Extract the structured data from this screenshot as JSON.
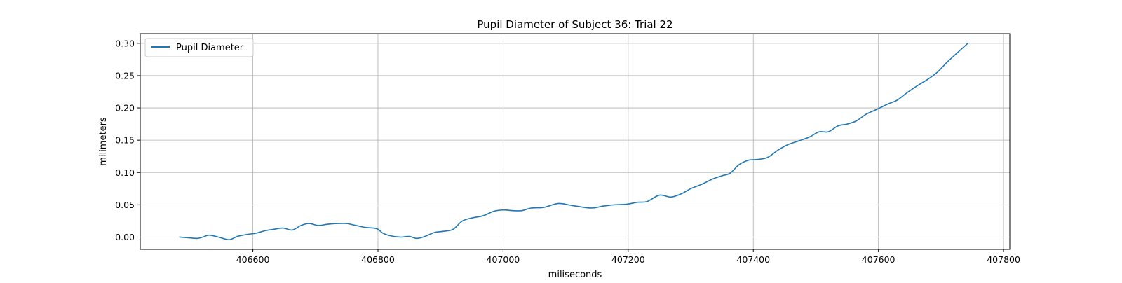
{
  "chart_data": {
    "type": "line",
    "title": "Pupil Diameter of Subject 36: Trial 22",
    "xlabel": "miliseconds",
    "ylabel": "milimeters",
    "xlim": [
      406420,
      407810
    ],
    "ylim": [
      -0.019,
      0.315
    ],
    "x_ticks": [
      406600,
      406800,
      407000,
      407200,
      407400,
      407600,
      407800
    ],
    "y_ticks": [
      0.0,
      0.05,
      0.1,
      0.15,
      0.2,
      0.25,
      0.3
    ],
    "y_tick_labels": [
      "0.00",
      "0.05",
      "0.10",
      "0.15",
      "0.20",
      "0.25",
      "0.30"
    ],
    "grid": true,
    "legend_position": "top-left",
    "series": [
      {
        "name": "Pupil Diameter",
        "color": "#1f77b4",
        "x": [
          406483,
          406497,
          406511,
          406520,
          406530,
          406545,
          406562,
          406575,
          406590,
          406605,
          406620,
          406633,
          406648,
          406663,
          406677,
          406690,
          406705,
          406720,
          406735,
          406750,
          406765,
          406780,
          406798,
          406808,
          406820,
          406835,
          406850,
          406862,
          406875,
          406890,
          406905,
          406920,
          406935,
          406952,
          406968,
          406985,
          407000,
          407015,
          407030,
          407045,
          407065,
          407088,
          407110,
          407140,
          407160,
          407178,
          407198,
          407215,
          407230,
          407250,
          407268,
          407285,
          407300,
          407318,
          407335,
          407350,
          407363,
          407377,
          407392,
          407405,
          407422,
          407440,
          407455,
          407470,
          407490,
          407505,
          407520,
          407535,
          407550,
          407565,
          407580,
          407598,
          407615,
          407630,
          407645,
          407660,
          407680,
          407695,
          407710,
          407728,
          407743
        ],
        "y": [
          0.0,
          -0.001,
          -0.002,
          0.0,
          0.003,
          0.0,
          -0.004,
          0.001,
          0.004,
          0.006,
          0.01,
          0.012,
          0.014,
          0.011,
          0.018,
          0.021,
          0.018,
          0.02,
          0.021,
          0.021,
          0.018,
          0.015,
          0.013,
          0.006,
          0.002,
          0.0,
          0.001,
          -0.002,
          0.001,
          0.007,
          0.009,
          0.012,
          0.025,
          0.03,
          0.033,
          0.04,
          0.042,
          0.041,
          0.041,
          0.045,
          0.046,
          0.052,
          0.049,
          0.045,
          0.048,
          0.05,
          0.051,
          0.054,
          0.055,
          0.065,
          0.062,
          0.067,
          0.075,
          0.082,
          0.09,
          0.095,
          0.099,
          0.112,
          0.119,
          0.12,
          0.123,
          0.135,
          0.143,
          0.148,
          0.155,
          0.163,
          0.163,
          0.172,
          0.175,
          0.18,
          0.19,
          0.198,
          0.206,
          0.212,
          0.223,
          0.233,
          0.245,
          0.256,
          0.271,
          0.287,
          0.3
        ]
      }
    ]
  }
}
